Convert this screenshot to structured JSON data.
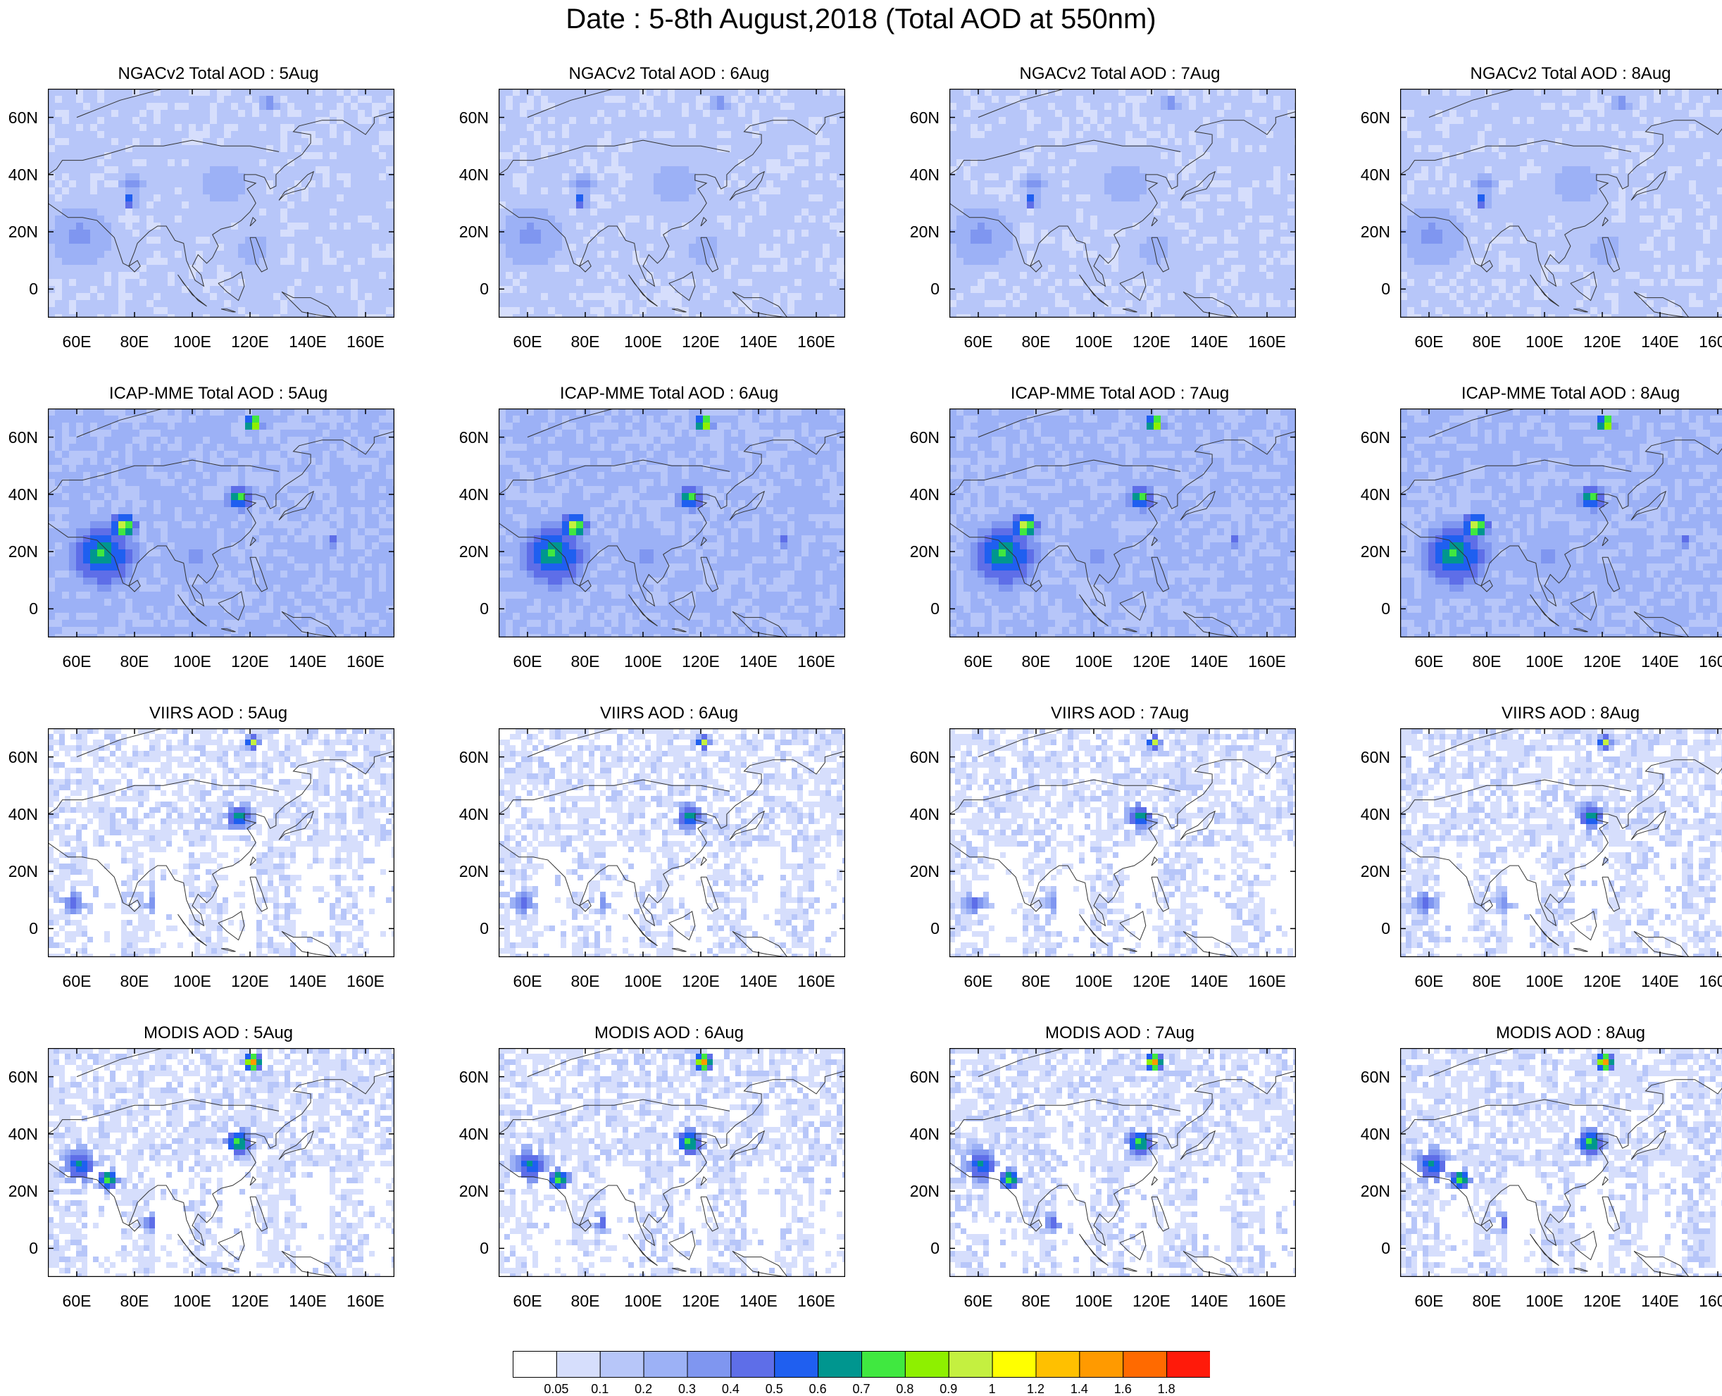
{
  "title": "Date : 5-8th August,2018 (Total AOD at 550nm)",
  "axis": {
    "lat_ticks": [
      "60N",
      "40N",
      "20N",
      "0"
    ],
    "lon_ticks": [
      "60E",
      "80E",
      "100E",
      "120E",
      "140E",
      "160E"
    ]
  },
  "panels": [
    {
      "title": "NGACv2 Total AOD : 5Aug",
      "model": "NGACv2",
      "day": 5
    },
    {
      "title": "NGACv2 Total AOD : 6Aug",
      "model": "NGACv2",
      "day": 6
    },
    {
      "title": "NGACv2 Total AOD : 7Aug",
      "model": "NGACv2",
      "day": 7
    },
    {
      "title": "NGACv2 Total AOD : 8Aug",
      "model": "NGACv2",
      "day": 8
    },
    {
      "title": "ICAP-MME Total AOD : 5Aug",
      "model": "ICAP-MME",
      "day": 5
    },
    {
      "title": "ICAP-MME Total AOD : 6Aug",
      "model": "ICAP-MME",
      "day": 6
    },
    {
      "title": "ICAP-MME Total AOD : 7Aug",
      "model": "ICAP-MME",
      "day": 7
    },
    {
      "title": "ICAP-MME Total AOD : 8Aug",
      "model": "ICAP-MME",
      "day": 8
    },
    {
      "title": "VIIRS AOD : 5Aug",
      "model": "VIIRS",
      "day": 5
    },
    {
      "title": "VIIRS AOD : 6Aug",
      "model": "VIIRS",
      "day": 6
    },
    {
      "title": "VIIRS AOD : 7Aug",
      "model": "VIIRS",
      "day": 7
    },
    {
      "title": "VIIRS AOD : 8Aug",
      "model": "VIIRS",
      "day": 8
    },
    {
      "title": "MODIS AOD : 5Aug",
      "model": "MODIS",
      "day": 5
    },
    {
      "title": "MODIS AOD : 6Aug",
      "model": "MODIS",
      "day": 6
    },
    {
      "title": "MODIS AOD : 7Aug",
      "model": "MODIS",
      "day": 7
    },
    {
      "title": "MODIS AOD : 8Aug",
      "model": "MODIS",
      "day": 8
    }
  ],
  "colorbar": {
    "labels": [
      "0.05",
      "0.1",
      "0.2",
      "0.3",
      "0.4",
      "0.5",
      "0.6",
      "0.7",
      "0.8",
      "0.9",
      "1",
      "1.2",
      "1.4",
      "1.6",
      "1.8"
    ],
    "colors": [
      "#ffffff",
      "#d6defc",
      "#b7c6f9",
      "#9cb1f6",
      "#7f96f0",
      "#5e6ee8",
      "#1f5ff0",
      "#00968f",
      "#40e840",
      "#8ef000",
      "#c4f040",
      "#ffff00",
      "#ffc000",
      "#ff9a00",
      "#ff6a00",
      "#ff1a0a"
    ]
  }
}
